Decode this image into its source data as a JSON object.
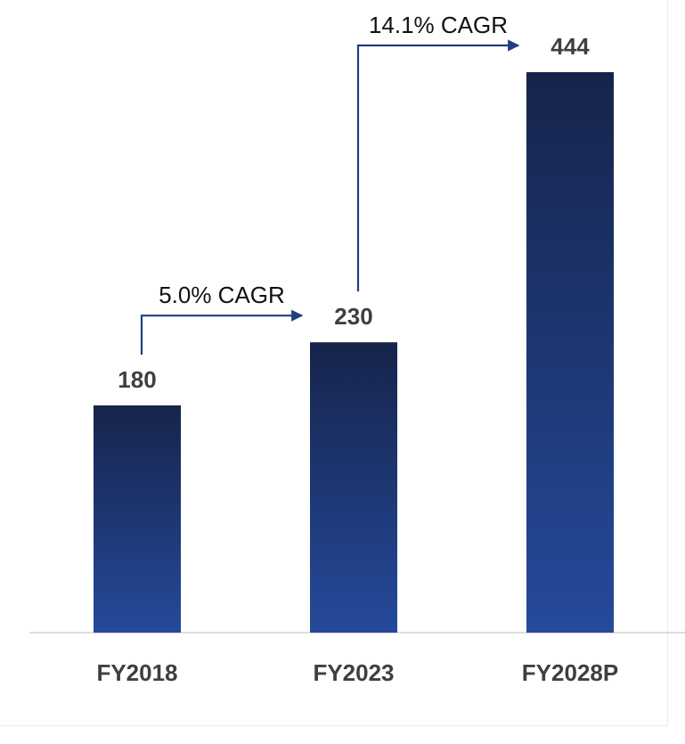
{
  "chart_data": {
    "type": "bar",
    "categories": [
      "FY2018",
      "FY2023",
      "FY2028P"
    ],
    "values": [
      180,
      230,
      444
    ],
    "ylim": [
      0,
      480
    ],
    "grid": false,
    "legend": "none",
    "annotations": [
      {
        "text": "5.0% CAGR",
        "from": "FY2018",
        "to": "FY2023"
      },
      {
        "text": "14.1% CAGR",
        "from": "FY2023",
        "to": "FY2028P"
      }
    ],
    "colors": {
      "bar_top": "#16244b",
      "bar_bottom": "#254a9b",
      "arrow": "#1f3f82",
      "axis": "#d4d4d4",
      "label": "#3f3f3f"
    }
  }
}
